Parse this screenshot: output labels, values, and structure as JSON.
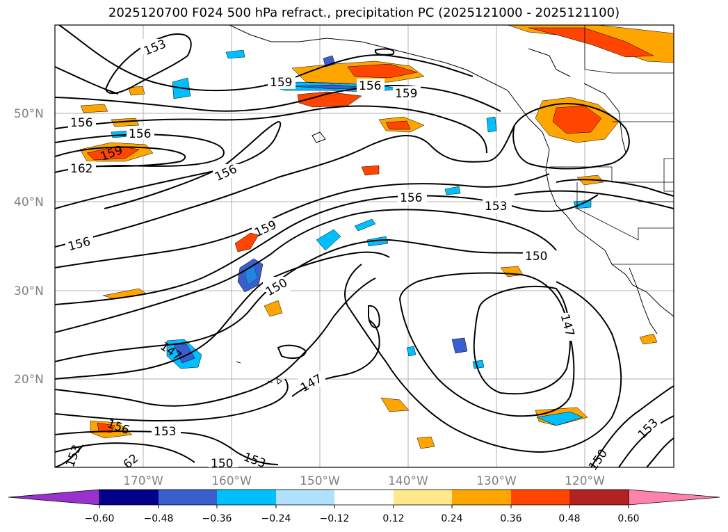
{
  "title": "2025120700 F024 500 hPa refract., precipitation PC (2025121000 - 2025121100)",
  "lat_labels": [
    "50°N",
    "40°N",
    "30°N",
    "20°N"
  ],
  "lon_labels": [
    "170°W",
    "160°W",
    "150°W",
    "140°W",
    "130°W",
    "120°W"
  ],
  "contour_labels": [
    {
      "text": "153",
      "rot": -22
    },
    {
      "text": "159",
      "rot": 0
    },
    {
      "text": "156",
      "rot": 0
    },
    {
      "text": "159",
      "rot": 0
    },
    {
      "text": "156",
      "rot": 0
    },
    {
      "text": "156",
      "rot": 0
    },
    {
      "text": "159",
      "rot": -20
    },
    {
      "text": "162",
      "rot": 0
    },
    {
      "text": "156",
      "rot": -25
    },
    {
      "text": "156",
      "rot": 0
    },
    {
      "text": "153",
      "rot": 0
    },
    {
      "text": "159",
      "rot": -25
    },
    {
      "text": "156",
      "rot": -15
    },
    {
      "text": "150",
      "rot": 0
    },
    {
      "text": "150",
      "rot": -30
    },
    {
      "text": "147",
      "rot": 75
    },
    {
      "text": "147",
      "rot": 35
    },
    {
      "text": "147",
      "rot": -30
    },
    {
      "text": "156",
      "rot": 20
    },
    {
      "text": "153",
      "rot": 0
    },
    {
      "text": "153",
      "rot": -45
    },
    {
      "text": "150",
      "rot": 0
    },
    {
      "text": "153",
      "rot": 20
    },
    {
      "text": "150",
      "rot": -55
    },
    {
      "text": "153",
      "rot": -70
    },
    {
      "text": "62",
      "rot": -40
    }
  ],
  "colorbar": {
    "ticks": [
      "−0.60",
      "−0.48",
      "−0.36",
      "−0.24",
      "−0.12",
      "0.12",
      "0.24",
      "0.36",
      "0.48",
      "0.60"
    ],
    "colors": [
      "#9932cc",
      "#00008b",
      "#3a5fcd",
      "#00bfff",
      "#b0e2ff",
      "#ffffff",
      "#ffe98c",
      "#ffa500",
      "#ff4500",
      "#b22222",
      "#ff82ab"
    ]
  }
}
